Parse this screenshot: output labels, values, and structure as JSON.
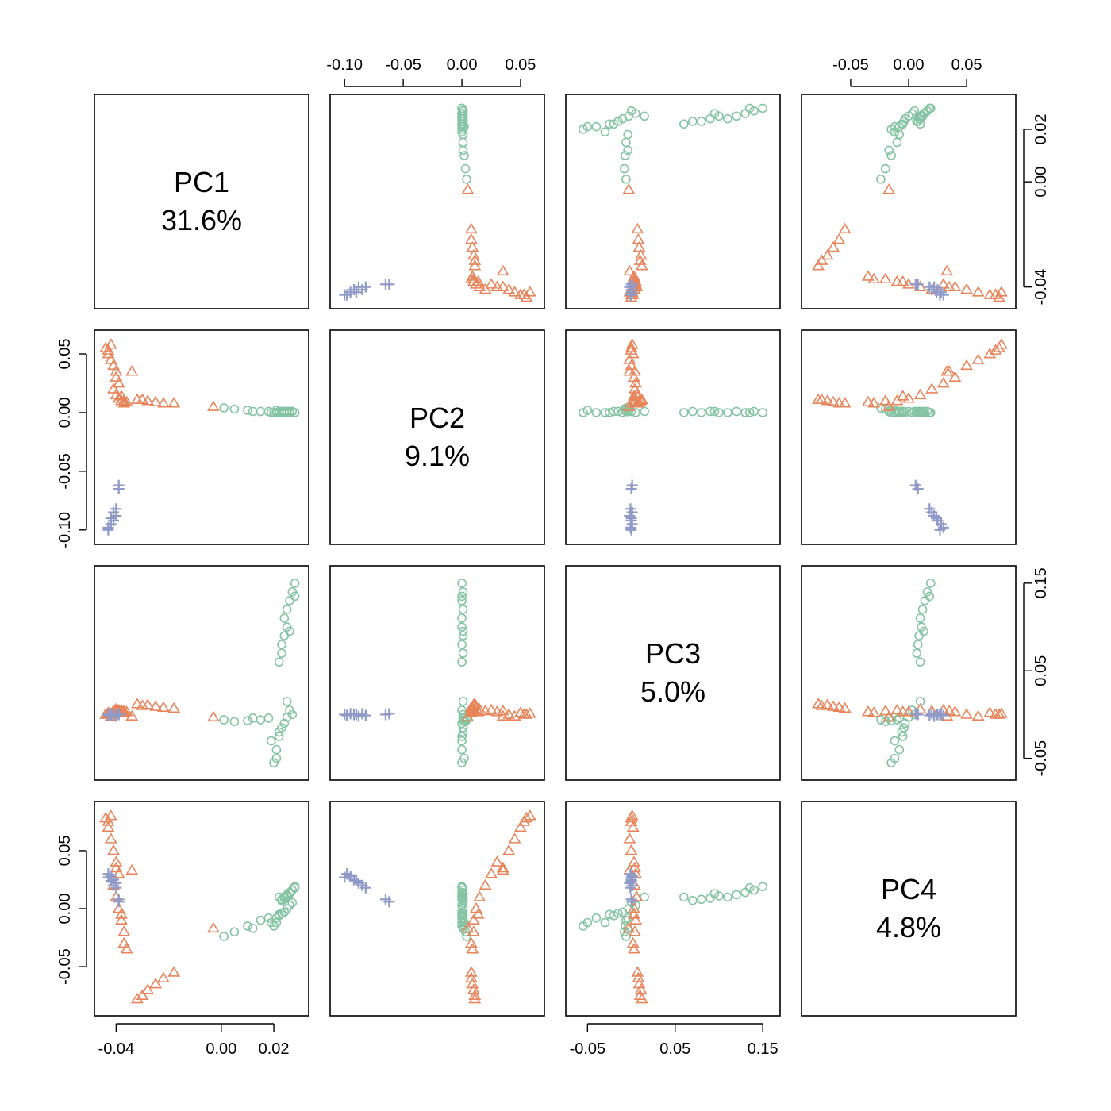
{
  "chart_data": {
    "type": "scatter",
    "variables": [
      {
        "name": "PC1",
        "percent": "31.6%",
        "range": [
          -0.045,
          0.03
        ]
      },
      {
        "name": "PC2",
        "percent": "9.1%",
        "range": [
          -0.105,
          0.063
        ]
      },
      {
        "name": "PC3",
        "percent": "5.0%",
        "range": [
          -0.065,
          0.16
        ]
      },
      {
        "name": "PC4",
        "percent": "4.8%",
        "range": [
          -0.085,
          0.085
        ]
      }
    ],
    "axes": {
      "pc1_ticks": [
        "-0.04",
        "0.00",
        "0.02"
      ],
      "pc2_ticks": [
        "-0.10",
        "-0.05",
        "0.00",
        "0.05"
      ],
      "pc3_ticks": [
        "-0.05",
        "0.05",
        "0.15"
      ],
      "pc4_ticks": [
        "-0.05",
        "0.00",
        "0.05"
      ],
      "pc1_right_ticks": [
        "-0.04",
        "0.00",
        "0.02"
      ]
    },
    "grid": false,
    "legend": "none",
    "series": [
      {
        "marker": "circle",
        "color": "#85c4a2",
        "points": [
          [
            0.028,
            0.0,
            0.15,
            0.019
          ],
          [
            0.027,
            0.001,
            0.14,
            0.016
          ],
          [
            0.026,
            0.0,
            0.13,
            0.014
          ],
          [
            0.025,
            0.001,
            0.12,
            0.012
          ],
          [
            0.024,
            0.0,
            0.11,
            0.01
          ],
          [
            0.025,
            0.0,
            0.1,
            0.011
          ],
          [
            0.024,
            0.001,
            0.09,
            0.009
          ],
          [
            0.023,
            0.0,
            0.08,
            0.008
          ],
          [
            0.023,
            0.001,
            0.07,
            0.007
          ],
          [
            0.022,
            0.0,
            0.06,
            0.01
          ],
          [
            0.027,
            0.001,
            0.0,
            0.005
          ],
          [
            0.026,
            0.0,
            0.005,
            0.003
          ],
          [
            0.025,
            0.001,
            -0.003,
            0.0
          ],
          [
            0.024,
            0.0,
            -0.01,
            -0.003
          ],
          [
            0.023,
            0.001,
            -0.015,
            -0.004
          ],
          [
            0.022,
            0.001,
            -0.02,
            -0.006
          ],
          [
            0.021,
            0.0,
            -0.04,
            -0.008
          ],
          [
            0.021,
            0.002,
            -0.05,
            -0.012
          ],
          [
            0.02,
            0.0,
            -0.055,
            -0.015
          ],
          [
            0.015,
            0.001,
            -0.006,
            -0.01
          ],
          [
            0.01,
            0.002,
            -0.007,
            -0.015
          ],
          [
            0.005,
            0.003,
            -0.008,
            -0.02
          ],
          [
            0.001,
            0.004,
            -0.006,
            -0.024
          ],
          [
            0.018,
            0.001,
            -0.004,
            -0.008
          ],
          [
            0.028,
            0.0,
            0.135,
            0.018
          ],
          [
            0.026,
            0.001,
            0.095,
            0.013
          ],
          [
            0.022,
            0.0,
            -0.025,
            -0.005
          ],
          [
            0.025,
            0.001,
            0.015,
            0.01
          ],
          [
            0.019,
            0.0,
            -0.03,
            -0.012
          ],
          [
            0.012,
            0.001,
            -0.004,
            -0.017
          ]
        ]
      },
      {
        "marker": "triangle",
        "color": "#e8845a",
        "points": [
          [
            -0.044,
            0.055,
            0.0,
            0.078
          ],
          [
            -0.043,
            0.05,
            0.002,
            0.07
          ],
          [
            -0.042,
            0.045,
            -0.002,
            0.06
          ],
          [
            -0.041,
            0.04,
            0.0,
            0.05
          ],
          [
            -0.04,
            0.03,
            0.003,
            0.04
          ],
          [
            -0.039,
            0.025,
            0.005,
            0.03
          ],
          [
            -0.041,
            0.02,
            0.004,
            0.02
          ],
          [
            -0.04,
            0.015,
            0.006,
            0.01
          ],
          [
            -0.039,
            0.012,
            0.003,
            0.0
          ],
          [
            -0.038,
            0.01,
            0.005,
            -0.01
          ],
          [
            -0.037,
            0.01,
            0.004,
            -0.02
          ],
          [
            -0.037,
            0.008,
            0.002,
            -0.03
          ],
          [
            -0.034,
            0.035,
            -0.002,
            0.033
          ],
          [
            -0.03,
            0.011,
            0.01,
            -0.075
          ],
          [
            -0.028,
            0.01,
            0.011,
            -0.07
          ],
          [
            -0.025,
            0.009,
            0.009,
            -0.065
          ],
          [
            -0.022,
            0.008,
            0.008,
            -0.06
          ],
          [
            -0.018,
            0.008,
            0.007,
            -0.055
          ],
          [
            -0.003,
            0.005,
            -0.003,
            -0.017
          ],
          [
            -0.042,
            0.058,
            0.001,
            0.08
          ],
          [
            -0.043,
            0.053,
            0.0,
            0.075
          ],
          [
            -0.04,
            0.035,
            0.004,
            0.035
          ],
          [
            -0.038,
            0.014,
            0.003,
            -0.005
          ],
          [
            -0.036,
            0.009,
            0.003,
            -0.035
          ],
          [
            -0.032,
            0.011,
            0.012,
            -0.078
          ]
        ]
      },
      {
        "marker": "plus",
        "color": "#8f9ac8",
        "points": [
          [
            -0.043,
            -0.098,
            -0.001,
            0.03
          ],
          [
            -0.042,
            -0.095,
            0.001,
            0.028
          ],
          [
            -0.041,
            -0.092,
            0.0,
            0.025
          ],
          [
            -0.04,
            -0.088,
            -0.002,
            0.022
          ],
          [
            -0.041,
            -0.085,
            0.001,
            0.02
          ],
          [
            -0.042,
            -0.09,
            0.0,
            0.024
          ],
          [
            -0.04,
            -0.082,
            -0.001,
            0.018
          ],
          [
            -0.039,
            -0.065,
            0.0,
            0.008
          ],
          [
            -0.039,
            -0.062,
            0.001,
            0.006
          ],
          [
            -0.043,
            -0.1,
            0.0,
            0.027
          ]
        ]
      }
    ]
  }
}
